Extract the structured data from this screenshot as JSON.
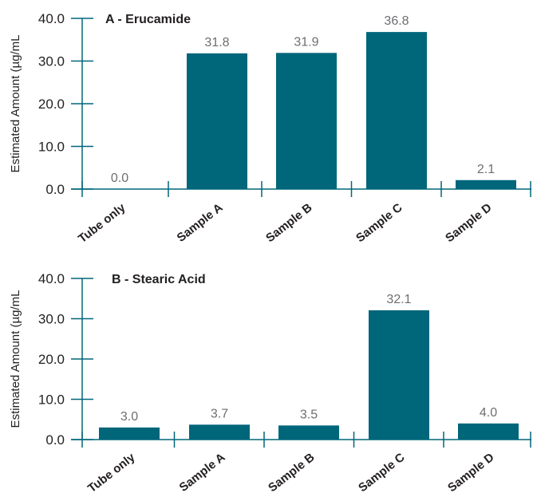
{
  "chart_data": [
    {
      "type": "bar",
      "title": "A - Erucamide",
      "ylabel": "Estimated Amount (µg/mL",
      "xlabel": "",
      "categories": [
        "Tube only",
        "Sample A",
        "Sample B",
        "Sample C",
        "Sample D"
      ],
      "values": [
        0.0,
        31.8,
        31.9,
        36.8,
        2.1
      ],
      "value_labels": [
        "0.0",
        "31.8",
        "31.9",
        "36.8",
        "2.1"
      ],
      "ylim": [
        0,
        40
      ],
      "yticks": [
        "0.0",
        "10.0",
        "20.0",
        "30.0",
        "40.0"
      ],
      "grid": false,
      "bar_color": "#00667a"
    },
    {
      "type": "bar",
      "title": "B - Stearic Acid",
      "ylabel": "Estimated Amount (µg/mL",
      "xlabel": "",
      "categories": [
        "Tube only",
        "Sample A",
        "Sample B",
        "Sample C",
        "Sample D"
      ],
      "values": [
        3.0,
        3.7,
        3.5,
        32.1,
        4.0
      ],
      "value_labels": [
        "3.0",
        "3.7",
        "3.5",
        "32.1",
        "4.0"
      ],
      "ylim": [
        0,
        40
      ],
      "yticks": [
        "0.0",
        "10.0",
        "20.0",
        "30.0",
        "40.0"
      ],
      "grid": false,
      "bar_color": "#00667a"
    }
  ]
}
